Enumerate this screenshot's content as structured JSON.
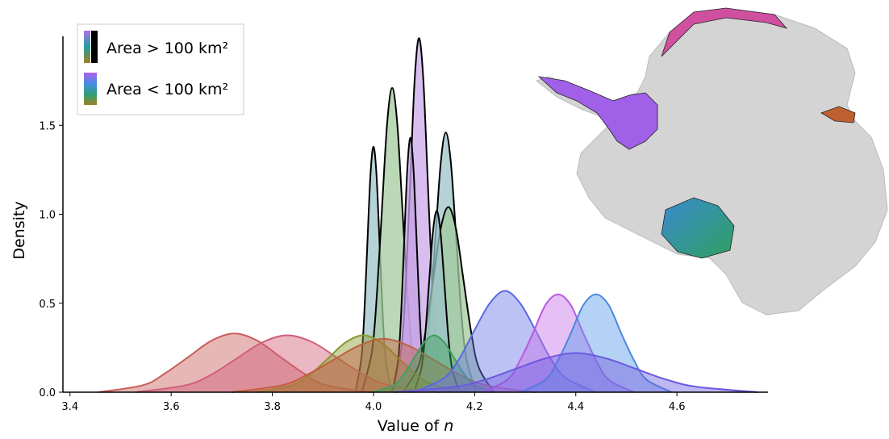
{
  "chart_data": {
    "type": "density",
    "x_label": "Value of n",
    "y_label": "Density",
    "xlim": [
      3.386,
      4.78
    ],
    "ylim": [
      0,
      2.0
    ],
    "xticks": [
      3.4,
      3.6,
      3.8,
      {
        "value": 4,
        "label": "4.0"
      },
      4.2,
      4.4,
      4.6
    ],
    "yticks": [
      {
        "value": 0,
        "label": "0.0"
      },
      0.5,
      {
        "value": 1,
        "label": "1.0"
      },
      1.5
    ],
    "legend": [
      {
        "label": "Area > 100 km²"
      },
      {
        "label": "Area < 100 km²"
      }
    ],
    "legend_position": "upper left",
    "series": [
      {
        "group": 0,
        "color": "#9cc3c8",
        "edge": "#000000",
        "x": [
          3.964,
          3.976,
          3.982,
          3.988,
          3.994,
          4.0,
          4.006,
          4.012,
          4.018,
          4.024,
          4.036
        ],
        "values": [
          0,
          0.19,
          0.45,
          0.84,
          1.22,
          1.38,
          1.22,
          0.84,
          0.45,
          0.19,
          0
        ]
      },
      {
        "group": 0,
        "color": "#a3c99e",
        "edge": "#000000",
        "x": [
          3.977,
          3.997,
          4.007,
          4.017,
          4.027,
          4.037,
          4.047,
          4.057,
          4.067,
          4.077,
          4.097
        ],
        "values": [
          0,
          0.23,
          0.56,
          1.04,
          1.51,
          1.71,
          1.51,
          1.04,
          0.56,
          0.23,
          0
        ]
      },
      {
        "group": 0,
        "color": "#cba8ea",
        "edge": "#000000",
        "x": [
          4.039,
          4.056,
          4.0645,
          4.073,
          4.0815,
          4.09,
          4.0985,
          4.107,
          4.1155,
          4.124,
          4.141
        ],
        "values": [
          0,
          0.27,
          0.65,
          1.21,
          1.76,
          1.99,
          1.76,
          1.21,
          0.65,
          0.27,
          0
        ]
      },
      {
        "group": 0,
        "color": "#c5a0e6",
        "edge": "#000000",
        "x": [
          4.037,
          4.049,
          4.055,
          4.061,
          4.067,
          4.073,
          4.079,
          4.085,
          4.091,
          4.097,
          4.109
        ],
        "values": [
          0,
          0.19,
          0.46,
          0.87,
          1.26,
          1.43,
          1.26,
          0.87,
          0.46,
          0.19,
          0
        ]
      },
      {
        "group": 0,
        "color": "#9cc3c8",
        "edge": "#000000",
        "x": [
          4.083,
          4.103,
          4.113,
          4.123,
          4.133,
          4.143,
          4.153,
          4.163,
          4.173,
          4.183,
          4.203
        ],
        "values": [
          0,
          0.2,
          0.47,
          0.89,
          1.29,
          1.46,
          1.29,
          0.89,
          0.47,
          0.2,
          0
        ]
      },
      {
        "group": 0,
        "color": "#a3c99e",
        "edge": "#000000",
        "x": [
          4.058,
          4.088,
          4.103,
          4.118,
          4.133,
          4.148,
          4.163,
          4.178,
          4.193,
          4.208,
          4.238
        ],
        "values": [
          0,
          0.14,
          0.34,
          0.63,
          0.92,
          1.04,
          0.92,
          0.63,
          0.34,
          0.14,
          0
        ]
      },
      {
        "group": 0,
        "color": "#9cc3c8",
        "edge": "#000000",
        "x": [
          4.08,
          4.095,
          4.1025,
          4.11,
          4.1175,
          4.125,
          4.1325,
          4.14,
          4.1475,
          4.155,
          4.17
        ],
        "values": [
          0,
          0.14,
          0.33,
          0.62,
          0.9,
          1.02,
          0.9,
          0.62,
          0.33,
          0.14,
          0
        ]
      },
      {
        "group": 1,
        "color": "#c8605a",
        "edge": "#c8605a",
        "x": [
          3.455,
          3.545,
          3.59,
          3.635,
          3.68,
          3.725,
          3.77,
          3.815,
          3.86,
          3.905,
          3.995
        ],
        "values": [
          0,
          0.04,
          0.11,
          0.2,
          0.29,
          0.33,
          0.29,
          0.2,
          0.11,
          0.04,
          0
        ]
      },
      {
        "group": 1,
        "color": "#d0607a",
        "edge": "#d0607a",
        "x": [
          3.53,
          3.63,
          3.68,
          3.73,
          3.78,
          3.83,
          3.88,
          3.93,
          3.98,
          4.03,
          4.13
        ],
        "values": [
          0,
          0.04,
          0.1,
          0.19,
          0.28,
          0.32,
          0.28,
          0.19,
          0.1,
          0.04,
          0
        ]
      },
      {
        "group": 1,
        "color": "#8a9a30",
        "edge": "#8a9a30",
        "x": [
          3.77,
          3.84,
          3.875,
          3.91,
          3.945,
          3.98,
          4.015,
          4.05,
          4.085,
          4.12,
          4.19
        ],
        "values": [
          0,
          0.04,
          0.1,
          0.19,
          0.28,
          0.32,
          0.28,
          0.19,
          0.1,
          0.04,
          0
        ]
      },
      {
        "group": 1,
        "color": "#c06040",
        "edge": "#c06040",
        "x": [
          3.72,
          3.82,
          3.87,
          3.92,
          3.97,
          4.02,
          4.07,
          4.12,
          4.17,
          4.22,
          4.32
        ],
        "values": [
          0,
          0.04,
          0.1,
          0.18,
          0.26,
          0.3,
          0.26,
          0.18,
          0.1,
          0.04,
          0
        ]
      },
      {
        "group": 1,
        "color": "#40a060",
        "edge": "#40a060",
        "x": [
          4.0,
          4.04,
          4.06,
          4.08,
          4.1,
          4.12,
          4.14,
          4.16,
          4.18,
          4.2,
          4.24
        ],
        "values": [
          0,
          0.04,
          0.1,
          0.19,
          0.28,
          0.32,
          0.28,
          0.19,
          0.1,
          0.04,
          0
        ]
      },
      {
        "group": 1,
        "color": "#6a78e6",
        "edge": "#5a68e0",
        "x": [
          4.08,
          4.14,
          4.17,
          4.2,
          4.23,
          4.26,
          4.29,
          4.32,
          4.35,
          4.38,
          4.44
        ],
        "values": [
          0,
          0.08,
          0.19,
          0.35,
          0.5,
          0.57,
          0.5,
          0.35,
          0.19,
          0.08,
          0
        ]
      },
      {
        "group": 1,
        "color": "#c870e8",
        "edge": "#b858e0",
        "x": [
          4.215,
          4.265,
          4.29,
          4.315,
          4.34,
          4.365,
          4.39,
          4.415,
          4.44,
          4.465,
          4.515
        ],
        "values": [
          0,
          0.07,
          0.18,
          0.33,
          0.49,
          0.55,
          0.49,
          0.33,
          0.18,
          0.07,
          0
        ]
      },
      {
        "group": 1,
        "color": "#5a9ae8",
        "edge": "#4a8ae0",
        "x": [
          4.29,
          4.34,
          4.365,
          4.39,
          4.415,
          4.44,
          4.465,
          4.49,
          4.515,
          4.54,
          4.59
        ],
        "values": [
          0,
          0.07,
          0.18,
          0.33,
          0.49,
          0.55,
          0.49,
          0.33,
          0.18,
          0.07,
          0
        ]
      },
      {
        "group": 1,
        "color": "#7060e0",
        "edge": "#6a5ae0",
        "x": [
          4.04,
          4.16,
          4.22,
          4.28,
          4.34,
          4.4,
          4.46,
          4.52,
          4.58,
          4.64,
          4.76
        ],
        "values": [
          0,
          0.03,
          0.07,
          0.13,
          0.19,
          0.22,
          0.19,
          0.13,
          0.07,
          0.03,
          0
        ]
      }
    ]
  }
}
